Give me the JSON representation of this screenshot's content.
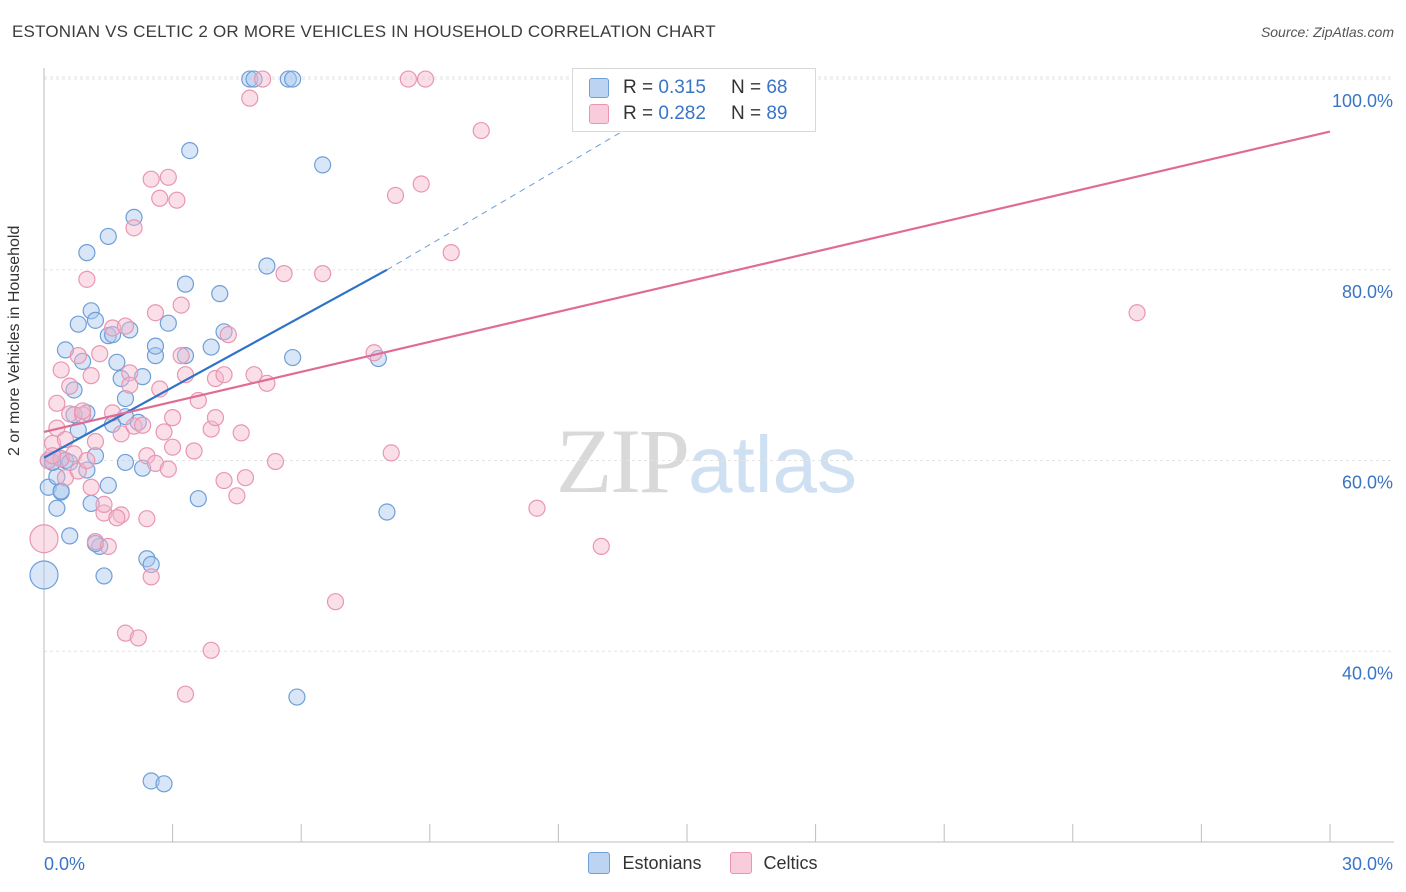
{
  "title": "ESTONIAN VS CELTIC 2 OR MORE VEHICLES IN HOUSEHOLD CORRELATION CHART",
  "source": "Source: ZipAtlas.com",
  "watermark": {
    "zip": "ZIP",
    "atlas": "atlas"
  },
  "legend_top": [
    {
      "r_label": "R = ",
      "r_value": "0.315",
      "n_label": "N = ",
      "n_value": "68"
    },
    {
      "r_label": "R = ",
      "r_value": "0.282",
      "n_label": "N = ",
      "n_value": "89"
    }
  ],
  "chart_data": {
    "type": "scatter",
    "title": "ESTONIAN VS CELTIC 2 OR MORE VEHICLES IN HOUSEHOLD CORRELATION CHART",
    "xlabel": "",
    "ylabel": "2 or more Vehicles in Household",
    "xlim": [
      0,
      30
    ],
    "ylim": [
      20,
      102
    ],
    "x_ticks": [
      {
        "value": 0,
        "label": "0.0%"
      },
      {
        "value": 30,
        "label": "30.0%"
      }
    ],
    "y_ticks": [
      {
        "value": 40,
        "label": "40.0%"
      },
      {
        "value": 60,
        "label": "60.0%"
      },
      {
        "value": 80,
        "label": "80.0%"
      },
      {
        "value": 100,
        "label": "100.0%"
      }
    ],
    "colors": {
      "Estonians": {
        "fill": "#a9c8ee",
        "stroke": "#6f9fd8",
        "line": "#2f73c9"
      },
      "Celtics": {
        "fill": "#f5b8cb",
        "stroke": "#e996b1",
        "line": "#e06c96"
      }
    },
    "series": [
      {
        "name": "Estonians",
        "r": 0.315,
        "n": 68,
        "trend": {
          "x0": 0,
          "y0": 60.3,
          "x1": 8.0,
          "y1": 80.0,
          "dash_to_x": 15.0,
          "dash_to_y": 98.5
        },
        "points": [
          [
            0.0,
            48.0,
            14
          ],
          [
            0.1,
            57.2,
            8
          ],
          [
            0.2,
            59.8,
            8
          ],
          [
            0.3,
            58.3,
            8
          ],
          [
            0.3,
            55.0,
            8
          ],
          [
            0.4,
            56.7,
            8
          ],
          [
            0.4,
            60.2,
            8
          ],
          [
            0.5,
            71.6,
            8
          ],
          [
            0.5,
            60.0,
            8
          ],
          [
            0.6,
            52.1,
            8
          ],
          [
            0.7,
            67.4,
            8
          ],
          [
            0.8,
            74.3,
            8
          ],
          [
            0.8,
            63.2,
            8
          ],
          [
            0.9,
            70.4,
            8
          ],
          [
            1.0,
            59.0,
            8
          ],
          [
            1.0,
            65.0,
            8
          ],
          [
            1.0,
            81.8,
            8
          ],
          [
            1.1,
            75.7,
            8
          ],
          [
            1.1,
            55.5,
            8
          ],
          [
            1.2,
            60.5,
            8
          ],
          [
            1.2,
            74.7,
            8
          ],
          [
            1.3,
            51.0,
            8
          ],
          [
            1.4,
            47.9,
            8
          ],
          [
            1.5,
            57.4,
            8
          ],
          [
            1.5,
            73.1,
            8
          ],
          [
            1.5,
            83.5,
            8
          ],
          [
            1.6,
            63.8,
            8
          ],
          [
            1.6,
            73.2,
            8
          ],
          [
            1.7,
            70.3,
            8
          ],
          [
            1.8,
            68.6,
            8
          ],
          [
            1.9,
            66.5,
            8
          ],
          [
            1.9,
            59.8,
            8
          ],
          [
            2.0,
            73.7,
            8
          ],
          [
            2.1,
            85.5,
            8
          ],
          [
            2.3,
            68.8,
            8
          ],
          [
            2.3,
            59.2,
            8
          ],
          [
            2.4,
            49.7,
            8
          ],
          [
            2.5,
            49.1,
            8
          ],
          [
            2.5,
            26.4,
            8
          ],
          [
            2.6,
            71.0,
            8
          ],
          [
            2.6,
            72.0,
            8
          ],
          [
            2.8,
            26.1,
            8
          ],
          [
            2.9,
            74.4,
            8
          ],
          [
            3.3,
            78.5,
            8
          ],
          [
            3.4,
            92.5,
            8
          ],
          [
            3.6,
            56.0,
            8
          ],
          [
            3.9,
            71.9,
            8
          ],
          [
            4.1,
            77.5,
            8
          ],
          [
            4.2,
            73.5,
            8
          ],
          [
            4.8,
            100.0,
            8
          ],
          [
            4.9,
            100.0,
            8
          ],
          [
            5.2,
            80.4,
            8
          ],
          [
            5.7,
            100.0,
            8
          ],
          [
            5.8,
            100.0,
            8
          ],
          [
            5.8,
            70.8,
            8
          ],
          [
            5.9,
            35.2,
            8
          ],
          [
            6.5,
            91.0,
            8
          ],
          [
            7.8,
            70.7,
            8
          ],
          [
            8.0,
            54.6,
            8
          ],
          [
            0.1,
            60.0,
            8
          ],
          [
            0.2,
            59.8,
            8
          ],
          [
            0.4,
            56.8,
            8
          ],
          [
            0.6,
            59.8,
            8
          ],
          [
            1.2,
            51.3,
            8
          ],
          [
            1.9,
            64.6,
            8
          ],
          [
            2.2,
            64.0,
            8
          ],
          [
            3.3,
            71.0,
            8
          ],
          [
            0.7,
            64.8,
            8
          ]
        ]
      },
      {
        "name": "Celtics",
        "r": 0.282,
        "n": 89,
        "trend": {
          "x0": 0,
          "y0": 63.0,
          "x1": 30,
          "y1": 94.5
        },
        "points": [
          [
            0.0,
            51.8,
            14
          ],
          [
            0.1,
            60.0,
            8
          ],
          [
            0.2,
            61.8,
            8
          ],
          [
            0.3,
            63.4,
            8
          ],
          [
            0.3,
            66.0,
            8
          ],
          [
            0.4,
            60.2,
            8
          ],
          [
            0.4,
            69.5,
            8
          ],
          [
            0.5,
            58.2,
            8
          ],
          [
            0.6,
            67.8,
            8
          ],
          [
            0.6,
            64.9,
            8
          ],
          [
            0.7,
            60.7,
            8
          ],
          [
            0.8,
            58.9,
            8
          ],
          [
            0.9,
            64.8,
            8
          ],
          [
            1.0,
            79.0,
            8
          ],
          [
            1.1,
            57.2,
            8
          ],
          [
            1.1,
            68.9,
            8
          ],
          [
            1.2,
            51.5,
            8
          ],
          [
            1.3,
            71.2,
            8
          ],
          [
            1.4,
            54.5,
            8
          ],
          [
            1.4,
            55.4,
            8
          ],
          [
            1.5,
            51.0,
            8
          ],
          [
            1.6,
            65.0,
            8
          ],
          [
            1.6,
            73.9,
            8
          ],
          [
            1.8,
            62.8,
            8
          ],
          [
            1.8,
            54.3,
            8
          ],
          [
            1.9,
            41.9,
            8
          ],
          [
            1.9,
            74.1,
            8
          ],
          [
            2.0,
            69.2,
            8
          ],
          [
            2.0,
            67.9,
            8
          ],
          [
            2.1,
            84.4,
            8
          ],
          [
            2.1,
            63.6,
            8
          ],
          [
            2.2,
            41.4,
            8
          ],
          [
            2.3,
            63.7,
            8
          ],
          [
            2.4,
            60.5,
            8
          ],
          [
            2.4,
            53.9,
            8
          ],
          [
            2.5,
            47.8,
            8
          ],
          [
            2.5,
            89.5,
            8
          ],
          [
            2.6,
            59.7,
            8
          ],
          [
            2.6,
            75.5,
            8
          ],
          [
            2.7,
            87.5,
            8
          ],
          [
            2.9,
            89.7,
            8
          ],
          [
            2.9,
            59.1,
            8
          ],
          [
            3.0,
            61.4,
            8
          ],
          [
            3.0,
            64.5,
            8
          ],
          [
            3.1,
            87.3,
            8
          ],
          [
            3.2,
            71.0,
            8
          ],
          [
            3.2,
            76.3,
            8
          ],
          [
            3.3,
            69.0,
            8
          ],
          [
            3.3,
            35.5,
            8
          ],
          [
            3.6,
            66.3,
            8
          ],
          [
            3.9,
            63.3,
            8
          ],
          [
            3.9,
            40.1,
            8
          ],
          [
            4.0,
            68.6,
            8
          ],
          [
            4.0,
            64.5,
            8
          ],
          [
            4.2,
            69.0,
            8
          ],
          [
            4.2,
            57.9,
            8
          ],
          [
            4.3,
            73.2,
            8
          ],
          [
            4.5,
            56.3,
            8
          ],
          [
            4.7,
            58.2,
            8
          ],
          [
            4.8,
            98.0,
            8
          ],
          [
            4.9,
            69.0,
            8
          ],
          [
            5.1,
            100.0,
            8
          ],
          [
            5.2,
            68.1,
            8
          ],
          [
            5.4,
            59.9,
            8
          ],
          [
            5.6,
            79.6,
            8
          ],
          [
            6.5,
            79.6,
            8
          ],
          [
            6.8,
            45.2,
            8
          ],
          [
            7.7,
            71.3,
            8
          ],
          [
            8.1,
            60.8,
            8
          ],
          [
            8.2,
            87.8,
            8
          ],
          [
            8.5,
            100.0,
            8
          ],
          [
            8.8,
            89.0,
            8
          ],
          [
            8.9,
            100.0,
            8
          ],
          [
            9.5,
            81.8,
            8
          ],
          [
            10.2,
            94.6,
            8
          ],
          [
            11.5,
            55.0,
            8
          ],
          [
            13.0,
            51.0,
            8
          ],
          [
            25.5,
            75.5,
            8
          ],
          [
            0.8,
            71.0,
            8
          ],
          [
            1.2,
            62.0,
            8
          ],
          [
            0.5,
            62.2,
            8
          ],
          [
            1.7,
            54.0,
            8
          ],
          [
            2.8,
            63.0,
            8
          ],
          [
            3.5,
            61.0,
            8
          ],
          [
            1.0,
            60.0,
            8
          ],
          [
            0.9,
            65.2,
            8
          ],
          [
            2.7,
            67.5,
            8
          ],
          [
            4.6,
            62.9,
            8
          ],
          [
            0.2,
            60.5,
            8
          ]
        ]
      }
    ],
    "legend": {
      "position": "bottom-center",
      "entries": [
        "Estonians",
        "Celtics"
      ]
    }
  }
}
